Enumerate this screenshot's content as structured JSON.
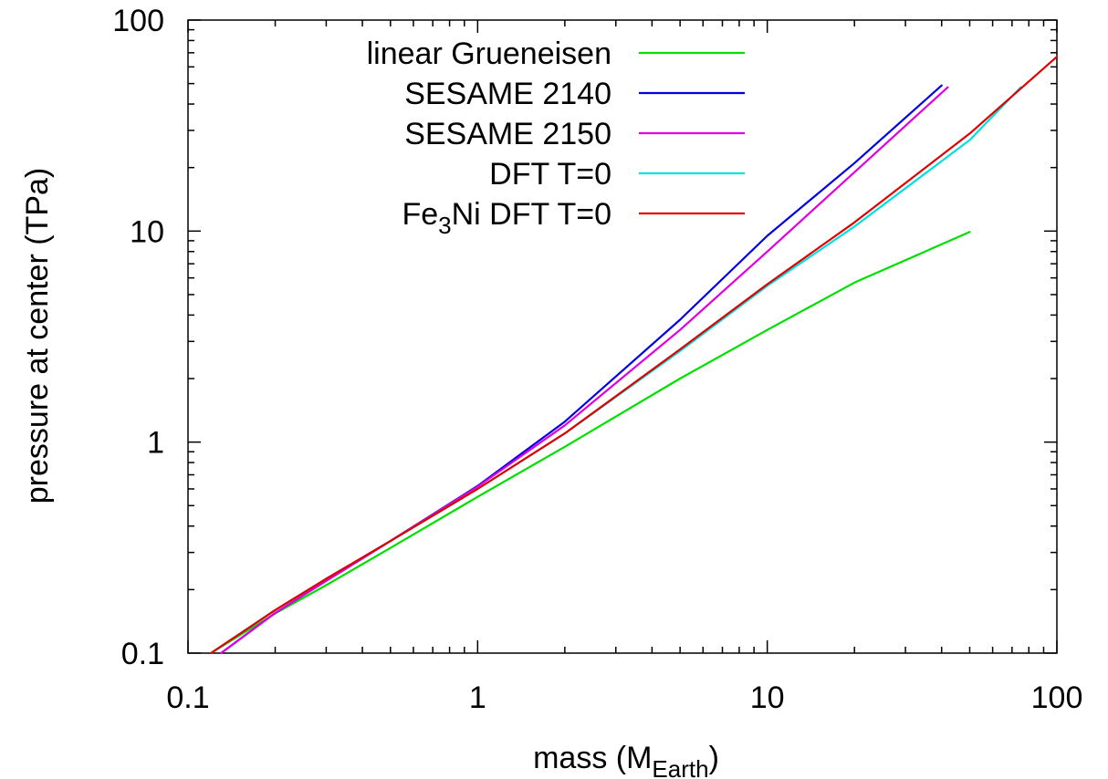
{
  "chart_data": {
    "type": "line",
    "title": "",
    "xlabel": "mass (M",
    "xlabel_sub": "Earth",
    "xlabel_end": ")",
    "ylabel": "pressure at center (TPa)",
    "xscale": "log",
    "yscale": "log",
    "xlim": [
      0.1,
      100
    ],
    "ylim": [
      0.1,
      100
    ],
    "x_ticks": [
      0.1,
      1,
      10,
      100
    ],
    "x_tick_labels": [
      "0.1",
      "1",
      "10",
      "100"
    ],
    "y_ticks": [
      0.1,
      1,
      10,
      100
    ],
    "y_tick_labels": [
      "0.1",
      "1",
      "10",
      "100"
    ],
    "grid": false,
    "legend_position": "top-left",
    "series": [
      {
        "name": "linear Grueneisen",
        "color": "#00e000",
        "x": [
          0.12,
          0.2,
          0.3,
          0.5,
          1,
          2,
          5,
          10,
          20,
          50
        ],
        "y": [
          0.1,
          0.154,
          0.21,
          0.315,
          0.55,
          0.95,
          2.0,
          3.4,
          5.7,
          9.9
        ]
      },
      {
        "name": "SESAME 2140",
        "color": "#0000e0",
        "x": [
          0.13,
          0.2,
          0.3,
          0.5,
          1,
          2,
          5,
          10,
          20,
          40
        ],
        "y": [
          0.1,
          0.155,
          0.22,
          0.34,
          0.62,
          1.25,
          3.8,
          9.5,
          21,
          49
        ]
      },
      {
        "name": "SESAME 2150",
        "color": "#e000e0",
        "x": [
          0.13,
          0.2,
          0.3,
          0.5,
          1,
          2,
          5,
          10,
          20,
          42
        ],
        "y": [
          0.1,
          0.155,
          0.22,
          0.34,
          0.615,
          1.2,
          3.4,
          8.0,
          19,
          48
        ]
      },
      {
        "name": "DFT T=0",
        "color": "#00e0e0",
        "x": [
          0.12,
          0.2,
          0.3,
          0.5,
          1,
          2,
          5,
          10,
          20,
          50,
          75
        ],
        "y": [
          0.1,
          0.16,
          0.225,
          0.34,
          0.6,
          1.1,
          2.7,
          5.5,
          10.5,
          27,
          48
        ]
      },
      {
        "name": "Fe3Ni DFT T=0",
        "name_prefix": "Fe",
        "name_sub": "3",
        "name_suffix": "Ni DFT T=0",
        "color": "#e00000",
        "x": [
          0.12,
          0.2,
          0.3,
          0.5,
          1,
          2,
          5,
          10,
          20,
          50,
          100
        ],
        "y": [
          0.1,
          0.16,
          0.225,
          0.34,
          0.6,
          1.1,
          2.75,
          5.6,
          11,
          29,
          67
        ]
      }
    ]
  }
}
